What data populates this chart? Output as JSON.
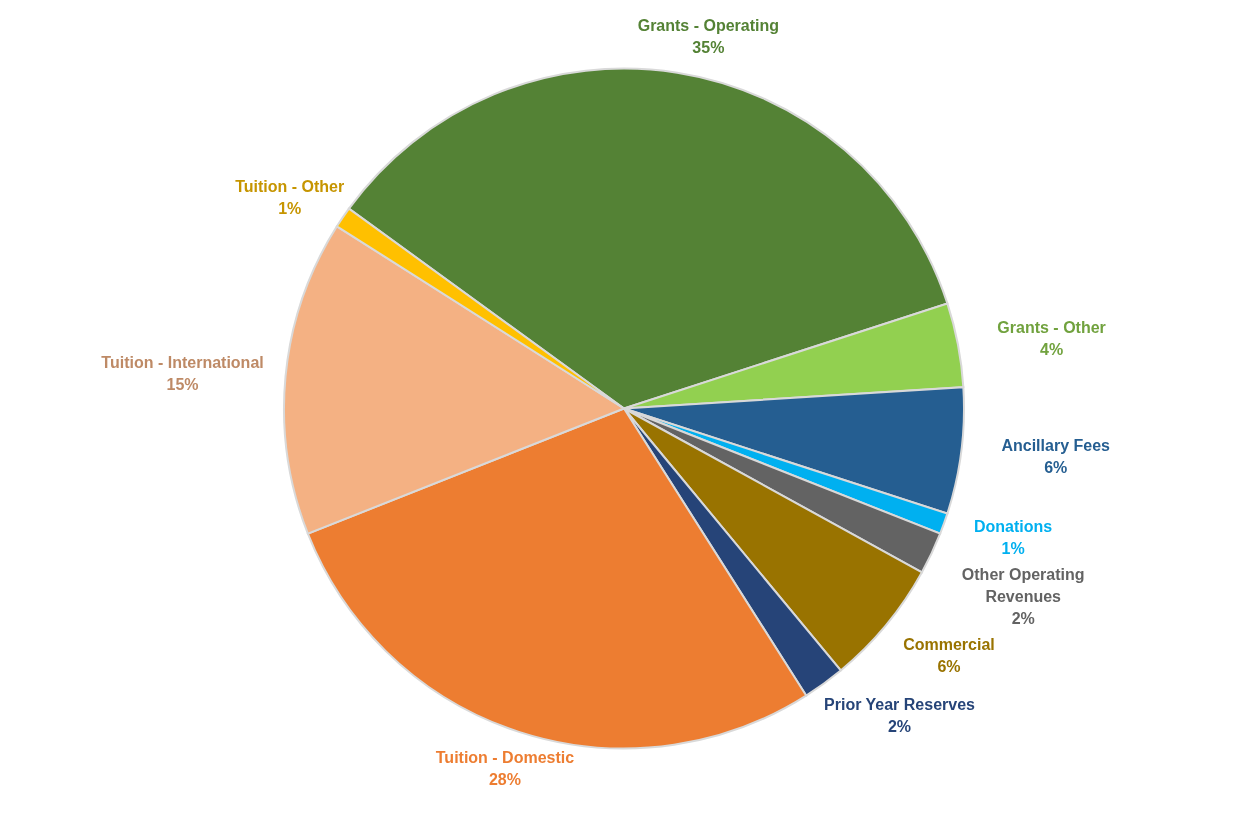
{
  "chart_data": {
    "type": "pie",
    "categories": [
      "Grants - Operating",
      "Grants - Other",
      "Ancillary Fees",
      "Donations",
      "Other Operating Revenues",
      "Commercial",
      "Prior Year Reserves",
      "Tuition - Domestic",
      "Tuition - International",
      "Tuition - Other"
    ],
    "values": [
      35,
      4,
      6,
      1,
      2,
      6,
      2,
      28,
      15,
      1
    ],
    "value_labels": [
      "35%",
      "4%",
      "6%",
      "1%",
      "2%",
      "6%",
      "2%",
      "28%",
      "15%",
      "1%"
    ],
    "colors": [
      "#548235",
      "#92d050",
      "#255e91",
      "#00b0f0",
      "#636363",
      "#997300",
      "#264478",
      "#ed7d31",
      "#f4b183",
      "#ffc000"
    ]
  }
}
